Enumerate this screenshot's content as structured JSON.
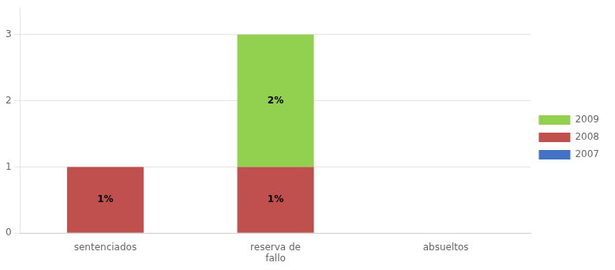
{
  "chart_data": {
    "type": "bar",
    "stacked": true,
    "categories": [
      "sentenciados",
      "reserva de\nfallo",
      "absueltos"
    ],
    "series": [
      {
        "name": "2009",
        "color": "#92d050",
        "values": [
          0,
          2,
          0
        ],
        "value_labels": [
          null,
          "2%",
          null
        ]
      },
      {
        "name": "2008",
        "color": "#c0504d",
        "values": [
          1,
          1,
          0
        ],
        "value_labels": [
          "1%",
          "1%",
          null
        ]
      },
      {
        "name": "2007",
        "color": "#4472c4",
        "values": [
          0,
          0,
          0
        ],
        "value_labels": [
          null,
          null,
          null
        ]
      }
    ],
    "ylim": [
      0,
      3.4
    ],
    "yticks": [
      0,
      1,
      2,
      3
    ],
    "grid": true,
    "legend": "right"
  }
}
